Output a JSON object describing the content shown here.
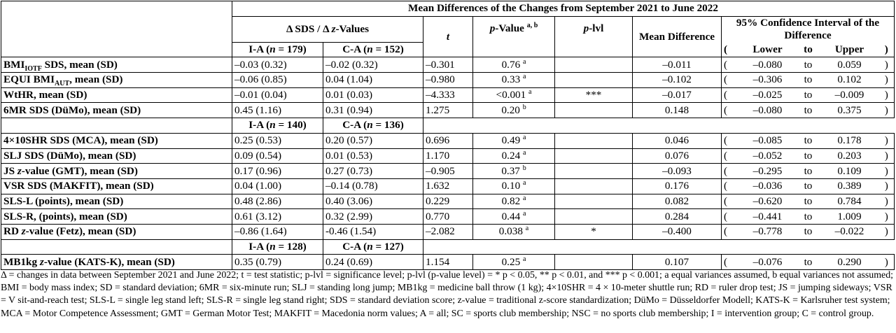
{
  "header": {
    "top_title": "Mean Differences of the Changes from September 2021 to June 2022",
    "delta_title_prefix": "Δ SDS / Δ ",
    "delta_title_z": "z",
    "delta_title_suffix": "-Values",
    "t_label": "t",
    "p_value_label": "p",
    "p_value_label_rest": "-Value ",
    "p_value_sup": "a, b",
    "p_lvl_p": "p",
    "p_lvl_rest": "-lvl",
    "mean_diff": "Mean Difference",
    "ci_title": "95% Confidence Interval of the Difference",
    "ci_open": "(",
    "ci_lower": "Lower",
    "ci_to": "to",
    "ci_upper": "Upper",
    "ci_close": ")"
  },
  "groups": [
    {
      "ia": {
        "pre": "I-A (",
        "n": "n",
        "post": " = 179)"
      },
      "ca": {
        "pre": "C-A (",
        "n": "n",
        "post": " = 152)"
      },
      "rows": [
        {
          "label_main": "BMI",
          "label_sub": "IOTF",
          "label_rest": " SDS, mean (SD)",
          "ia": "–0.03 (0.32)",
          "ca": "–0.02 (0.32)",
          "t": "–0.301",
          "p": "0.76 ",
          "psup": "a",
          "plvl": "",
          "md": "–0.011",
          "lower": "–0.080",
          "to": "to",
          "upper": "0.059"
        },
        {
          "label_main": "EQUI BMI",
          "label_sub": "AUT",
          "label_rest": ", mean (SD)",
          "ia": "–0.06 (0.85)",
          "ca": "0.04 (1.04)",
          "t": "–0.980",
          "p": "0.33 ",
          "psup": "a",
          "plvl": "",
          "md": "–0.102",
          "lower": "–0.306",
          "to": "to",
          "upper": "0.102"
        },
        {
          "label_main": "WtHR, mean (SD)",
          "label_sub": "",
          "label_rest": "",
          "ia": "–0.01 (0.04)",
          "ca": "0.01 (0.03)",
          "t": "–4.333",
          "p": "<0.001 ",
          "psup": "a",
          "plvl": "***",
          "md": "–0.017",
          "lower": "–0.025",
          "to": "to",
          "upper": "–0.009"
        },
        {
          "label_main": "6MR SDS (DüMo), mean (SD)",
          "label_sub": "",
          "label_rest": "",
          "ia": "0.45 (1.16)",
          "ca": "0.31 (0.94)",
          "t": "1.275",
          "p": "0.20 ",
          "psup": "b",
          "plvl": "",
          "md": "0.148",
          "lower": "–0.080",
          "to": "to",
          "upper": "0.375"
        }
      ]
    },
    {
      "ia": {
        "pre": "I-A (",
        "n": "n",
        "post": " = 140)"
      },
      "ca": {
        "pre": "C-A (",
        "n": "n",
        "post": " = 136)"
      },
      "rows": [
        {
          "label_main": "4×10SHR SDS (MCA), mean (SD)",
          "label_z": "",
          "ia": "0.25 (0.53)",
          "ca": "0.20 (0.57)",
          "t": "0.696",
          "p": "0.49 ",
          "psup": "a",
          "plvl": "",
          "md": "0.046",
          "lower": "–0.085",
          "to": "to",
          "upper": "0.178"
        },
        {
          "label_main": "SLJ SDS (DüMo), mean (SD)",
          "label_z": "",
          "ia": "0.09 (0.54)",
          "ca": "0.01 (0.53)",
          "t": "1.170",
          "p": "0.24 ",
          "psup": "a",
          "plvl": "",
          "md": "0.076",
          "lower": "–0.052",
          "to": "to",
          "upper": "0.203"
        },
        {
          "label_pre": "JS ",
          "label_z": "z",
          "label_post": "-value (GMT), mean (SD)",
          "ia": "0.17 (0.96)",
          "ca": "0.27 (0.73)",
          "t": "–0.905",
          "p": "0.37 ",
          "psup": "b",
          "plvl": "",
          "md": "–0.093",
          "lower": "–0.295",
          "to": "to",
          "upper": "0.109"
        },
        {
          "label_main": "VSR SDS (MAKFIT), mean (SD)",
          "label_z": "",
          "ia": "0.04 (1.00)",
          "ca": "–0.14 (0.78)",
          "t": "1.632",
          "p": "0.10 ",
          "psup": "a",
          "plvl": "",
          "md": "0.176",
          "lower": "–0.036",
          "to": "to",
          "upper": "0.389"
        },
        {
          "label_main": "SLS-L (points), mean (SD)",
          "label_z": "",
          "ia": "0.48 (2.86)",
          "ca": "0.40 (3.06)",
          "t": "0.229",
          "p": "0.82 ",
          "psup": "a",
          "plvl": "",
          "md": "0.082",
          "lower": "–0.620",
          "to": "to",
          "upper": "0.784"
        },
        {
          "label_main": "SLS-R, (points), mean (SD)",
          "label_z": "",
          "ia": "0.61 (3.12)",
          "ca": "0.32 (2.99)",
          "t": "0.770",
          "p": "0.44 ",
          "psup": "a",
          "plvl": "",
          "md": "0.284",
          "lower": "–0.441",
          "to": "to",
          "upper": "1.009"
        },
        {
          "label_pre": "RD ",
          "label_z": "z",
          "label_post": "-value (Fetz), mean (SD)",
          "ia": "–0.86 (1.64)",
          "ca": "-0.46 (1.54)",
          "t": "–2.082",
          "p": "0.038 ",
          "psup": "a",
          "plvl": "*",
          "md": "–0.400",
          "lower": "–0.778",
          "to": "to",
          "upper": "–0.022"
        }
      ]
    },
    {
      "ia": {
        "pre": "I-A (",
        "n": "n",
        "post": " = 128)"
      },
      "ca": {
        "pre": "C-A (",
        "n": "n",
        "post": " = 127)"
      },
      "rows": [
        {
          "label_pre": "MB1kg ",
          "label_z": "z",
          "label_post": "-value (KATS-K), mean (SD)",
          "ia": "0.35 (0.79)",
          "ca": "0.24 (0.69)",
          "t": "1.154",
          "p": "0.25 ",
          "psup": "a",
          "plvl": "",
          "md": "0.107",
          "lower": "–0.076",
          "to": "to",
          "upper": "0.290"
        }
      ]
    }
  ],
  "footnote": "Δ = changes in data between September 2021 and June 2022; t = test statistic; p-lvl = significance level; p-lvl (p-value level) = * p < 0.05, ** p < 0.01, and *** p < 0.001; a equal variances assumed, b equal variances not assumed; BMI = body mass index; SD = standard deviation; 6MR = six-minute run; SLJ = standing long jump; MB1kg = medicine ball throw (1 kg); 4×10SHR = 4 × 10-meter shuttle run; RD = ruler drop test; JS = jumping sideways; VSR = V sit-and-reach test; SLS-L = single leg stand left; SLS-R = single leg stand right; SDS = standard deviation score; z-value = traditional z-score standardization; DüMo = Düsseldorfer Modell; KATS-K = Karlsruher test system; MCA = Motor Competence Assessment; GMT = German Motor Test; MAKFIT = Macedonia norm values; A = all; SC = sports club membership; NSC = no sports club membership; I = intervention group; C = control group."
}
